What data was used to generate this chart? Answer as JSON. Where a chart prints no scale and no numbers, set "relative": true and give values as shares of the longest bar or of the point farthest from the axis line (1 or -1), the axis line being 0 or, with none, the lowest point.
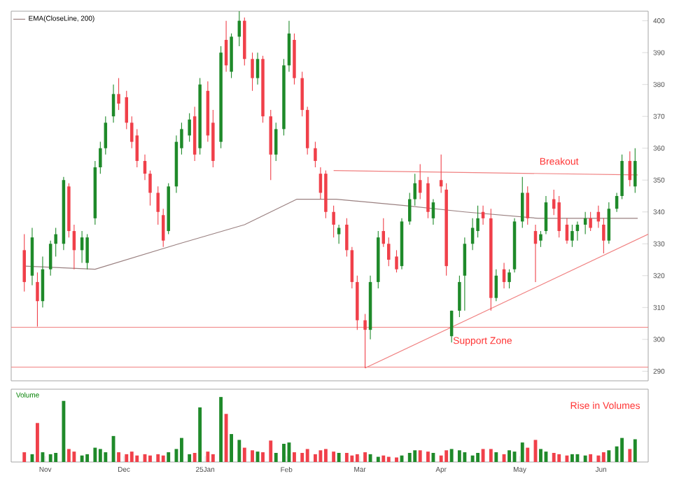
{
  "chart_data": [
    {
      "type": "candlestick",
      "x": [
        "2024-10-24",
        "2024-10-27",
        "2024-10-29",
        "2024-10-31",
        "2024-11-03",
        "2024-11-05",
        "2024-11-08",
        "2024-11-10",
        "2024-11-12",
        "2024-11-15",
        "2024-11-17",
        "2024-11-20",
        "2024-11-22",
        "2024-11-24",
        "2024-11-27",
        "2024-11-29",
        "2024-12-02",
        "2024-12-04",
        "2024-12-06",
        "2024-12-09",
        "2024-12-11",
        "2024-12-14",
        "2024-12-16",
        "2024-12-18",
        "2024-12-21",
        "2024-12-23",
        "2024-12-26",
        "2024-12-28",
        "2024-12-30",
        "2025-01-02",
        "2025-01-04",
        "2025-01-07",
        "2025-01-09",
        "2025-01-11",
        "2025-01-14",
        "2025-01-16",
        "2025-01-19",
        "2025-01-21",
        "2025-01-23",
        "2025-01-26",
        "2025-01-28",
        "2025-01-31",
        "2025-02-02",
        "2025-02-04",
        "2025-02-07",
        "2025-02-09",
        "2025-02-12",
        "2025-02-14",
        "2025-02-16",
        "2025-02-19",
        "2025-02-21",
        "2025-02-24",
        "2025-02-26",
        "2025-02-28",
        "2025-03-03",
        "2025-03-05",
        "2025-03-08",
        "2025-03-10",
        "2025-03-12",
        "2025-03-15",
        "2025-03-17",
        "2025-03-20",
        "2025-03-22",
        "2025-03-24",
        "2025-03-27",
        "2025-03-29",
        "2025-04-01",
        "2025-04-03",
        "2025-04-05",
        "2025-04-08",
        "2025-04-10",
        "2025-04-13",
        "2025-04-15",
        "2025-04-17",
        "2025-04-20",
        "2025-04-22",
        "2025-04-25",
        "2025-04-27",
        "2025-04-29",
        "2025-05-02",
        "2025-05-04",
        "2025-05-07",
        "2025-05-09",
        "2025-05-11",
        "2025-05-14",
        "2025-05-16",
        "2025-05-19",
        "2025-05-21",
        "2025-05-23",
        "2025-05-26",
        "2025-05-28",
        "2025-05-31",
        "2025-06-02",
        "2025-06-04",
        "2025-06-07",
        "2025-06-09",
        "2025-06-12",
        "2025-06-14"
      ],
      "ohlc": [
        [
          328,
          333,
          315,
          318
        ],
        [
          320,
          335,
          317,
          332
        ],
        [
          318,
          321,
          304,
          312
        ],
        [
          312,
          326,
          310,
          322
        ],
        [
          322,
          331,
          320,
          330
        ],
        [
          330,
          335,
          326,
          333
        ],
        [
          330,
          351,
          328,
          350
        ],
        [
          348,
          349,
          332,
          334
        ],
        [
          334,
          336,
          322,
          328
        ],
        [
          328,
          334,
          324,
          332
        ],
        [
          324,
          333,
          322,
          332
        ],
        [
          338,
          356,
          336,
          354
        ],
        [
          354,
          362,
          352,
          360
        ],
        [
          360,
          370,
          358,
          368
        ],
        [
          370,
          380,
          368,
          377
        ],
        [
          377,
          382,
          372,
          374
        ],
        [
          376,
          378,
          366,
          368
        ],
        [
          368,
          370,
          360,
          362
        ],
        [
          364,
          366,
          354,
          356
        ],
        [
          356,
          358,
          350,
          352
        ],
        [
          352,
          353,
          342,
          346
        ],
        [
          346,
          348,
          336,
          340
        ],
        [
          339,
          341,
          329,
          331
        ],
        [
          334,
          349,
          333,
          348
        ],
        [
          348,
          364,
          346,
          362
        ],
        [
          360,
          368,
          358,
          366
        ],
        [
          364,
          371,
          362,
          369
        ],
        [
          370,
          373,
          356,
          358
        ],
        [
          360,
          382,
          358,
          380
        ],
        [
          378,
          381,
          362,
          364
        ],
        [
          368,
          372,
          354,
          356
        ],
        [
          362,
          392,
          360,
          390
        ],
        [
          394,
          400,
          384,
          386
        ],
        [
          384,
          396,
          382,
          395
        ],
        [
          395,
          403,
          392,
          400
        ],
        [
          400,
          401,
          386,
          388
        ],
        [
          388,
          390,
          378,
          382
        ],
        [
          382,
          390,
          380,
          388
        ],
        [
          388,
          389,
          368,
          370
        ],
        [
          370,
          372,
          350,
          358
        ],
        [
          358,
          368,
          356,
          366
        ],
        [
          366,
          388,
          364,
          386
        ],
        [
          386,
          400,
          384,
          396
        ],
        [
          394,
          396,
          380,
          382
        ],
        [
          382,
          384,
          370,
          372
        ],
        [
          372,
          373,
          358,
          360
        ],
        [
          360,
          362,
          354,
          356
        ],
        [
          352,
          354,
          344,
          346
        ],
        [
          352,
          353,
          338,
          340
        ],
        [
          340,
          342,
          332,
          336
        ],
        [
          333,
          336,
          330,
          335
        ],
        [
          336,
          338,
          326,
          328
        ],
        [
          328,
          329,
          316,
          318
        ],
        [
          318,
          320,
          303,
          306
        ],
        [
          306,
          308,
          291,
          303
        ],
        [
          303,
          320,
          300,
          318
        ],
        [
          318,
          334,
          316,
          332
        ],
        [
          334,
          338,
          329,
          330
        ],
        [
          330,
          332,
          323,
          325
        ],
        [
          326,
          328,
          321,
          322
        ],
        [
          323,
          338,
          322,
          337
        ],
        [
          337,
          346,
          336,
          344
        ],
        [
          344,
          352,
          342,
          349
        ],
        [
          350,
          355,
          344,
          346
        ],
        [
          349,
          351,
          338,
          340
        ],
        [
          338,
          344,
          336,
          343
        ],
        [
          350,
          358,
          346,
          348
        ],
        [
          347,
          349,
          320,
          323
        ],
        [
          301,
          309,
          299,
          309
        ],
        [
          309,
          320,
          307,
          318
        ],
        [
          320,
          332,
          309,
          330
        ],
        [
          330,
          338,
          328,
          335
        ],
        [
          334,
          342,
          332,
          338
        ],
        [
          340,
          342,
          336,
          338
        ],
        [
          338,
          341,
          309,
          313
        ],
        [
          313,
          322,
          312,
          320
        ],
        [
          322,
          324,
          316,
          318
        ],
        [
          318,
          322,
          316,
          321
        ],
        [
          322,
          338,
          321,
          337
        ],
        [
          337,
          351,
          335,
          346
        ],
        [
          346,
          348,
          336,
          338
        ],
        [
          334,
          336,
          318,
          330
        ],
        [
          331,
          334,
          329,
          333
        ],
        [
          334,
          345,
          333,
          343
        ],
        [
          344,
          347,
          339,
          341
        ],
        [
          343,
          345,
          332,
          334
        ],
        [
          336,
          338,
          330,
          331
        ],
        [
          331,
          336,
          329,
          334
        ],
        [
          334,
          337,
          331,
          336
        ],
        [
          336,
          340,
          333,
          338
        ],
        [
          338,
          340,
          334,
          335
        ],
        [
          340,
          342,
          335,
          337
        ],
        [
          336,
          338,
          327,
          331
        ],
        [
          331,
          343,
          330,
          341
        ],
        [
          341,
          346,
          340,
          345
        ],
        [
          345,
          358,
          344,
          356
        ],
        [
          356,
          359,
          348,
          350
        ],
        [
          348,
          360,
          346,
          356
        ]
      ],
      "colors": [
        "#f0404a",
        "#1f8a2a",
        "#f0404a",
        "#1f8a2a",
        "#1f8a2a",
        "#1f8a2a",
        "#1f8a2a",
        "#f0404a",
        "#f0404a",
        "#1f8a2a",
        "#1f8a2a",
        "#1f8a2a",
        "#1f8a2a",
        "#1f8a2a",
        "#1f8a2a",
        "#f0404a",
        "#f0404a",
        "#f0404a",
        "#f0404a",
        "#f0404a",
        "#f0404a",
        "#f0404a",
        "#f0404a",
        "#1f8a2a",
        "#1f8a2a",
        "#1f8a2a",
        "#1f8a2a",
        "#f0404a",
        "#1f8a2a",
        "#f0404a",
        "#f0404a",
        "#1f8a2a",
        "#f0404a",
        "#1f8a2a",
        "#1f8a2a",
        "#f0404a",
        "#f0404a",
        "#1f8a2a",
        "#f0404a",
        "#f0404a",
        "#1f8a2a",
        "#1f8a2a",
        "#1f8a2a",
        "#f0404a",
        "#f0404a",
        "#f0404a",
        "#f0404a",
        "#f0404a",
        "#f0404a",
        "#f0404a",
        "#1f8a2a",
        "#f0404a",
        "#f0404a",
        "#f0404a",
        "#f0404a",
        "#1f8a2a",
        "#1f8a2a",
        "#f0404a",
        "#f0404a",
        "#f0404a",
        "#1f8a2a",
        "#1f8a2a",
        "#1f8a2a",
        "#f0404a",
        "#f0404a",
        "#1f8a2a",
        "#f0404a",
        "#f0404a",
        "#1f8a2a",
        "#1f8a2a",
        "#1f8a2a",
        "#1f8a2a",
        "#1f8a2a",
        "#f0404a",
        "#f0404a",
        "#1f8a2a",
        "#f0404a",
        "#1f8a2a",
        "#1f8a2a",
        "#1f8a2a",
        "#f0404a",
        "#f0404a",
        "#1f8a2a",
        "#1f8a2a",
        "#f0404a",
        "#f0404a",
        "#f0404a",
        "#1f8a2a",
        "#1f8a2a",
        "#1f8a2a",
        "#f0404a",
        "#f0404a",
        "#f0404a",
        "#1f8a2a",
        "#1f8a2a",
        "#1f8a2a",
        "#f0404a",
        "#1f8a2a"
      ],
      "series": [
        {
          "name": "EMA(CloseLine, 200)",
          "type": "line",
          "color": "#9a8080",
          "x": [
            "2024-10-24",
            "2024-11-20",
            "2024-12-22",
            "2025-01-16",
            "2025-02-05",
            "2025-02-20",
            "2025-03-18",
            "2025-04-10",
            "2025-05-08",
            "2025-06-15"
          ],
          "values": [
            323,
            322,
            330,
            336,
            344,
            344,
            342,
            340,
            338,
            338
          ]
        },
        {
          "type": "line",
          "color": "#f08080",
          "x": [
            "2025-02-19",
            "2025-06-15"
          ],
          "values": [
            353,
            351.6
          ]
        },
        {
          "type": "line",
          "color": "#f08080",
          "x": [
            "2025-03-03",
            "2025-06-19"
          ],
          "values": [
            291,
            333
          ]
        }
      ],
      "ref_lines": [
        {
          "axis": "y",
          "value": 303.8,
          "color": "#f08080"
        },
        {
          "axis": "y",
          "value": 291.3,
          "color": "#f08080"
        }
      ],
      "annotations": [
        "Breakout",
        "Support Zone"
      ],
      "xlim": [
        "2024-10-19",
        "2025-06-19"
      ],
      "ylim": [
        287,
        403
      ],
      "yticks": [
        290,
        300,
        310,
        320,
        330,
        340,
        350,
        360,
        370,
        380,
        390,
        400
      ],
      "tick_labels": "y",
      "legend": "top left"
    },
    {
      "type": "bar",
      "title": "Volume",
      "relative": true,
      "x": [
        "2024-10-24",
        "2024-10-27",
        "2024-10-29",
        "2024-10-31",
        "2024-11-03",
        "2024-11-05",
        "2024-11-08",
        "2024-11-10",
        "2024-11-12",
        "2024-11-15",
        "2024-11-17",
        "2024-11-20",
        "2024-11-22",
        "2024-11-24",
        "2024-11-27",
        "2024-11-29",
        "2024-12-02",
        "2024-12-04",
        "2024-12-06",
        "2024-12-09",
        "2024-12-11",
        "2024-12-14",
        "2024-12-16",
        "2024-12-18",
        "2024-12-21",
        "2024-12-23",
        "2024-12-26",
        "2024-12-28",
        "2024-12-30",
        "2025-01-02",
        "2025-01-04",
        "2025-01-07",
        "2025-01-09",
        "2025-01-11",
        "2025-01-14",
        "2025-01-16",
        "2025-01-19",
        "2025-01-21",
        "2025-01-23",
        "2025-01-26",
        "2025-01-28",
        "2025-01-31",
        "2025-02-02",
        "2025-02-04",
        "2025-02-07",
        "2025-02-09",
        "2025-02-12",
        "2025-02-14",
        "2025-02-16",
        "2025-02-19",
        "2025-02-21",
        "2025-02-24",
        "2025-02-26",
        "2025-02-28",
        "2025-03-03",
        "2025-03-05",
        "2025-03-08",
        "2025-03-10",
        "2025-03-12",
        "2025-03-15",
        "2025-03-17",
        "2025-03-20",
        "2025-03-22",
        "2025-03-24",
        "2025-03-27",
        "2025-03-29",
        "2025-04-01",
        "2025-04-03",
        "2025-04-05",
        "2025-04-08",
        "2025-04-10",
        "2025-04-13",
        "2025-04-15",
        "2025-04-17",
        "2025-04-20",
        "2025-04-22",
        "2025-04-25",
        "2025-04-27",
        "2025-04-29",
        "2025-05-02",
        "2025-05-04",
        "2025-05-07",
        "2025-05-09",
        "2025-05-11",
        "2025-05-14",
        "2025-05-16",
        "2025-05-19",
        "2025-05-21",
        "2025-05-23",
        "2025-05-26",
        "2025-05-28",
        "2025-05-31",
        "2025-06-02",
        "2025-06-04",
        "2025-06-07",
        "2025-06-09",
        "2025-06-12",
        "2025-06-14"
      ],
      "values": [
        0.15,
        0.12,
        0.6,
        0.15,
        0.12,
        0.14,
        0.94,
        0.2,
        0.16,
        0.1,
        0.12,
        0.22,
        0.2,
        0.15,
        0.4,
        0.15,
        0.12,
        0.16,
        0.1,
        0.12,
        0.1,
        0.12,
        0.1,
        0.15,
        0.2,
        0.37,
        0.12,
        0.14,
        0.84,
        0.16,
        0.12,
        1.0,
        0.74,
        0.43,
        0.34,
        0.22,
        0.18,
        0.16,
        0.15,
        0.33,
        0.14,
        0.28,
        0.3,
        0.15,
        0.14,
        0.2,
        0.12,
        0.18,
        0.2,
        0.16,
        0.14,
        0.14,
        0.1,
        0.12,
        0.15,
        0.12,
        0.08,
        0.1,
        0.08,
        0.07,
        0.1,
        0.14,
        0.18,
        0.18,
        0.16,
        0.14,
        0.1,
        0.18,
        0.2,
        0.18,
        0.15,
        0.1,
        0.14,
        0.2,
        0.2,
        0.15,
        0.12,
        0.18,
        0.16,
        0.3,
        0.22,
        0.34,
        0.2,
        0.16,
        0.14,
        0.12,
        0.1,
        0.12,
        0.12,
        0.1,
        0.12,
        0.1,
        0.15,
        0.18,
        0.24,
        0.37,
        0.2,
        0.35
      ],
      "colors": [
        "#f0404a",
        "#1f8a2a",
        "#f0404a",
        "#1f8a2a",
        "#1f8a2a",
        "#1f8a2a",
        "#1f8a2a",
        "#f0404a",
        "#f0404a",
        "#1f8a2a",
        "#1f8a2a",
        "#1f8a2a",
        "#1f8a2a",
        "#1f8a2a",
        "#1f8a2a",
        "#f0404a",
        "#f0404a",
        "#f0404a",
        "#f0404a",
        "#f0404a",
        "#f0404a",
        "#f0404a",
        "#f0404a",
        "#1f8a2a",
        "#1f8a2a",
        "#1f8a2a",
        "#1f8a2a",
        "#f0404a",
        "#1f8a2a",
        "#f0404a",
        "#f0404a",
        "#1f8a2a",
        "#f0404a",
        "#1f8a2a",
        "#1f8a2a",
        "#f0404a",
        "#f0404a",
        "#1f8a2a",
        "#f0404a",
        "#f0404a",
        "#1f8a2a",
        "#1f8a2a",
        "#1f8a2a",
        "#f0404a",
        "#f0404a",
        "#f0404a",
        "#f0404a",
        "#f0404a",
        "#f0404a",
        "#f0404a",
        "#1f8a2a",
        "#f0404a",
        "#f0404a",
        "#f0404a",
        "#f0404a",
        "#1f8a2a",
        "#1f8a2a",
        "#f0404a",
        "#f0404a",
        "#f0404a",
        "#1f8a2a",
        "#1f8a2a",
        "#1f8a2a",
        "#f0404a",
        "#f0404a",
        "#1f8a2a",
        "#f0404a",
        "#f0404a",
        "#1f8a2a",
        "#1f8a2a",
        "#1f8a2a",
        "#1f8a2a",
        "#1f8a2a",
        "#f0404a",
        "#f0404a",
        "#1f8a2a",
        "#f0404a",
        "#1f8a2a",
        "#1f8a2a",
        "#1f8a2a",
        "#f0404a",
        "#f0404a",
        "#1f8a2a",
        "#1f8a2a",
        "#f0404a",
        "#f0404a",
        "#f0404a",
        "#1f8a2a",
        "#1f8a2a",
        "#1f8a2a",
        "#f0404a",
        "#f0404a",
        "#f0404a",
        "#1f8a2a",
        "#1f8a2a",
        "#1f8a2a",
        "#f0404a",
        "#1f8a2a"
      ],
      "annotations": [
        "Rise in Volumes"
      ],
      "xlim": [
        "2024-10-19",
        "2025-06-19"
      ],
      "xticks": [
        {
          "value": "2024-11-01",
          "label": "Nov"
        },
        {
          "value": "2024-12-01",
          "label": "Dec"
        },
        {
          "value": "2025-01-01",
          "label": "25Jan"
        },
        {
          "value": "2025-02-01",
          "label": "Feb"
        },
        {
          "value": "2025-03-01",
          "label": "Mar"
        },
        {
          "value": "2025-04-01",
          "label": "Apr"
        },
        {
          "value": "2025-05-01",
          "label": "May"
        },
        {
          "value": "2025-06-01",
          "label": "Jun"
        }
      ],
      "tick_labels": "x"
    }
  ]
}
